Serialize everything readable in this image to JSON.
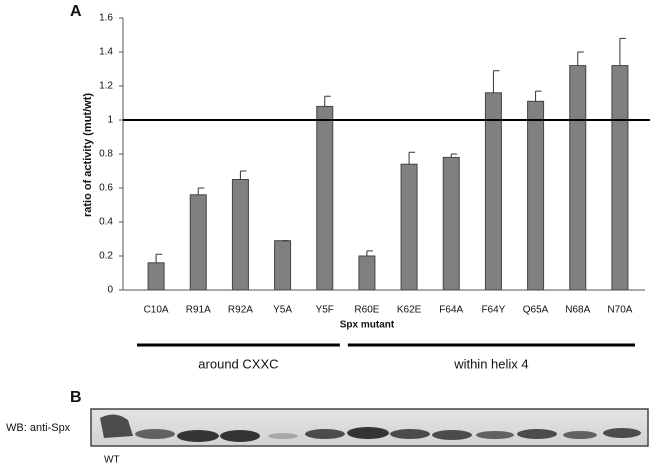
{
  "chart_data": {
    "type": "bar",
    "panel_label": "A",
    "y_label": "ratio of activity (mut/wt)",
    "x_label": "Spx mutant",
    "categories": [
      "C10A",
      "R91A",
      "R92A",
      "Y5A",
      "Y5F",
      "R60E",
      "K62E",
      "F64A",
      "F64Y",
      "Q65A",
      "N68A",
      "N70A"
    ],
    "values": [
      0.16,
      0.56,
      0.65,
      0.29,
      1.08,
      0.2,
      0.74,
      0.78,
      1.16,
      1.11,
      1.32,
      1.32
    ],
    "errors": [
      0.05,
      0.04,
      0.05,
      0.0,
      0.06,
      0.03,
      0.07,
      0.02,
      0.13,
      0.06,
      0.08,
      0.16
    ],
    "color": "#808080",
    "ylim": [
      0,
      1.6
    ],
    "yticks": [
      0,
      0.2,
      0.4,
      0.6,
      0.8,
      1,
      1.2,
      1.4,
      1.6
    ],
    "reference_line": 1,
    "groups": [
      {
        "label": "around CXXC",
        "from": "C10A",
        "to": "Y5F"
      },
      {
        "label": "within helix 4",
        "from": "R60E",
        "to": "N70A"
      }
    ]
  },
  "blot": {
    "panel_label": "B",
    "label": "WB: anti-Spx",
    "lane_label": "WT"
  }
}
